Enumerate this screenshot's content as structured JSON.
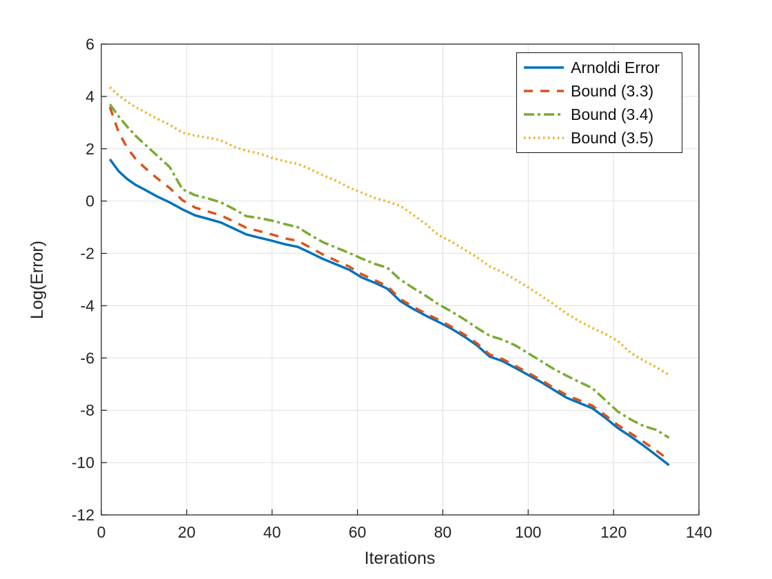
{
  "figure": {
    "background": "#ffffff",
    "axes_color": "#252525",
    "grid_color": "#e0e0e0"
  },
  "chart_data": {
    "type": "line",
    "title": "",
    "xlabel": "Iterations",
    "ylabel": "Log(Error)",
    "xlim": [
      0,
      140
    ],
    "ylim": [
      -12,
      6
    ],
    "x_ticks": [
      0,
      20,
      40,
      60,
      80,
      100,
      120,
      140
    ],
    "y_ticks": [
      -12,
      -10,
      -8,
      -6,
      -4,
      -2,
      0,
      2,
      4,
      6
    ],
    "grid": true,
    "legend_position": "top-right",
    "x": [
      2,
      4,
      6,
      8,
      10,
      13,
      16,
      19,
      22,
      25,
      28,
      31,
      34,
      37,
      40,
      43,
      46,
      49,
      52,
      55,
      58,
      61,
      64,
      67,
      70,
      73,
      76,
      79,
      82,
      85,
      88,
      91,
      94,
      97,
      100,
      103,
      106,
      109,
      112,
      115,
      118,
      121,
      124,
      127,
      130,
      133
    ],
    "series": [
      {
        "name": "Arnoldi Error",
        "color": "#0072BD",
        "style": "solid",
        "dash": "",
        "width": 3.5,
        "values": [
          1.6,
          1.15,
          0.85,
          0.62,
          0.45,
          0.18,
          -0.05,
          -0.32,
          -0.55,
          -0.68,
          -0.82,
          -1.05,
          -1.28,
          -1.4,
          -1.52,
          -1.65,
          -1.75,
          -1.98,
          -2.22,
          -2.42,
          -2.62,
          -2.92,
          -3.12,
          -3.35,
          -3.82,
          -4.12,
          -4.38,
          -4.62,
          -4.88,
          -5.18,
          -5.52,
          -5.95,
          -6.12,
          -6.38,
          -6.65,
          -6.92,
          -7.22,
          -7.52,
          -7.72,
          -7.92,
          -8.28,
          -8.68,
          -9.0,
          -9.35,
          -9.72,
          -10.1
        ]
      },
      {
        "name": "Bound (3.3)",
        "color": "#D95319",
        "style": "dashed",
        "dash": "13 11",
        "width": 3.5,
        "values": [
          3.6,
          2.65,
          2.05,
          1.62,
          1.3,
          0.88,
          0.5,
          0.03,
          -0.25,
          -0.4,
          -0.55,
          -0.78,
          -1.03,
          -1.15,
          -1.28,
          -1.43,
          -1.52,
          -1.78,
          -2.05,
          -2.28,
          -2.5,
          -2.8,
          -3.02,
          -3.25,
          -3.74,
          -4.04,
          -4.3,
          -4.54,
          -4.8,
          -5.1,
          -5.44,
          -5.87,
          -6.04,
          -6.3,
          -6.57,
          -6.84,
          -7.14,
          -7.42,
          -7.62,
          -7.82,
          -8.18,
          -8.56,
          -8.88,
          -9.2,
          -9.54,
          -9.9
        ]
      },
      {
        "name": "Bound (3.4)",
        "color": "#77AC30",
        "style": "dash-dot",
        "dash": "15 5 4 5",
        "width": 3.5,
        "values": [
          3.7,
          3.25,
          2.85,
          2.5,
          2.2,
          1.75,
          1.3,
          0.45,
          0.22,
          0.1,
          -0.05,
          -0.3,
          -0.58,
          -0.65,
          -0.75,
          -0.88,
          -1.0,
          -1.3,
          -1.58,
          -1.78,
          -1.98,
          -2.2,
          -2.4,
          -2.55,
          -3.0,
          -3.32,
          -3.62,
          -3.95,
          -4.22,
          -4.52,
          -4.85,
          -5.15,
          -5.3,
          -5.52,
          -5.82,
          -6.12,
          -6.42,
          -6.68,
          -6.92,
          -7.15,
          -7.6,
          -8.05,
          -8.35,
          -8.6,
          -8.75,
          -9.05
        ]
      },
      {
        "name": "Bound (3.5)",
        "color": "#EDB120",
        "style": "dotted",
        "dash": "2.5 4.5",
        "width": 3.5,
        "values": [
          4.35,
          4.05,
          3.8,
          3.6,
          3.42,
          3.15,
          2.92,
          2.62,
          2.5,
          2.42,
          2.32,
          2.08,
          1.92,
          1.82,
          1.65,
          1.52,
          1.42,
          1.22,
          0.98,
          0.78,
          0.52,
          0.32,
          0.12,
          -0.02,
          -0.18,
          -0.52,
          -0.88,
          -1.3,
          -1.55,
          -1.85,
          -2.15,
          -2.5,
          -2.72,
          -3.0,
          -3.3,
          -3.62,
          -3.95,
          -4.3,
          -4.6,
          -4.85,
          -5.08,
          -5.35,
          -5.8,
          -6.1,
          -6.35,
          -6.65
        ]
      }
    ]
  },
  "legend": {
    "items": [
      {
        "label": "Arnoldi Error"
      },
      {
        "label": "Bound (3.3)"
      },
      {
        "label": "Bound (3.4)"
      },
      {
        "label": "Bound (3.5)"
      }
    ]
  }
}
